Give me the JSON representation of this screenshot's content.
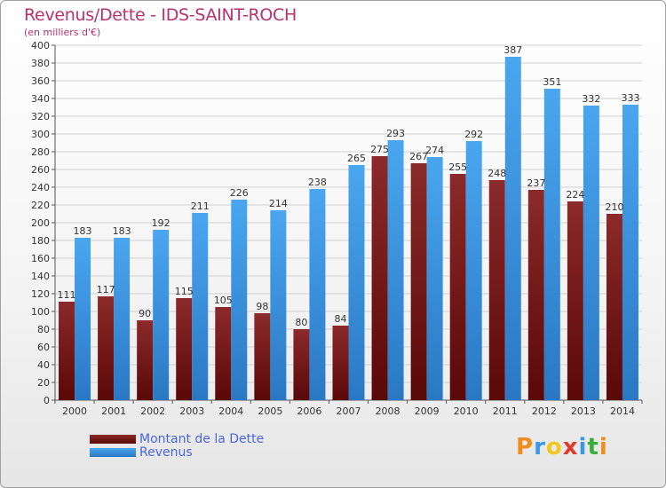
{
  "header": {
    "title": "Revenus/Dette - IDS-SAINT-ROCH",
    "subtitle": "(en milliers d'€)"
  },
  "legend": {
    "items": [
      {
        "label": "Montant de la Dette",
        "color": "#7a1b1b"
      },
      {
        "label": "Revenus",
        "color": "#3a98e6"
      }
    ]
  },
  "logo": {
    "letters": [
      "P",
      "r",
      "o",
      "x",
      "i",
      "t",
      "i"
    ],
    "colors": [
      "#f28c1e",
      "#3a98e6",
      "#f2c71e",
      "#e03a2e",
      "#3a98e6",
      "#3aae3a",
      "#f28c1e"
    ]
  },
  "chart_data": {
    "type": "bar",
    "categories": [
      "2000",
      "2001",
      "2002",
      "2003",
      "2004",
      "2005",
      "2006",
      "2007",
      "2008",
      "2009",
      "2010",
      "2011",
      "2012",
      "2013",
      "2014"
    ],
    "series": [
      {
        "name": "Montant de la Dette",
        "color": "#7a1b1b",
        "values": [
          111,
          117,
          90,
          115,
          105,
          98,
          80,
          84,
          275,
          267,
          255,
          248,
          237,
          224,
          210
        ]
      },
      {
        "name": "Revenus",
        "color": "#3a98e6",
        "values": [
          183,
          183,
          192,
          211,
          226,
          214,
          238,
          265,
          293,
          274,
          292,
          387,
          351,
          332,
          333
        ]
      }
    ],
    "ylim": [
      0,
      400
    ],
    "ytick_step": 20,
    "grid": true,
    "legend_position": "bottom-left"
  }
}
